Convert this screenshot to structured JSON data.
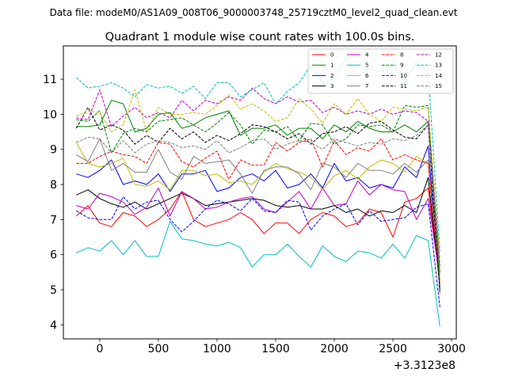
{
  "chart_data": {
    "type": "line",
    "suptitle": "Data file: modeM0/AS1A09_008T06_9000003748_25719cztM0_level2_quad_clean.evt",
    "title": "Quadrant 1 module wise count rates with 100.0s bins.",
    "xlabel": "",
    "ylabel": "",
    "x_offset_label": "+3.3123e8",
    "xlim": [
      -310,
      3040
    ],
    "ylim": [
      3.6,
      11.95
    ],
    "x_ticks": [
      0,
      500,
      1000,
      1500,
      2000,
      2500,
      3000
    ],
    "y_ticks": [
      4,
      5,
      6,
      7,
      8,
      9,
      10,
      11
    ],
    "grid": false,
    "legend_position": "upper-right",
    "legend_columns": 4,
    "x": [
      -200,
      -100,
      0,
      100,
      200,
      300,
      400,
      500,
      600,
      700,
      800,
      900,
      1000,
      1100,
      1200,
      1300,
      1400,
      1500,
      1600,
      1700,
      1800,
      1900,
      2000,
      2100,
      2200,
      2300,
      2400,
      2500,
      2600,
      2700,
      2800,
      2900
    ],
    "series": [
      {
        "name": "0",
        "color": "#ff0000",
        "dash": "solid",
        "values": [
          7.1,
          7.4,
          6.9,
          6.8,
          7.2,
          7.1,
          6.8,
          7.0,
          7.3,
          7.8,
          7.0,
          6.8,
          6.9,
          7.0,
          7.2,
          7.0,
          6.6,
          6.9,
          6.9,
          6.6,
          7.0,
          7.2,
          7.1,
          6.8,
          6.9,
          7.3,
          7.2,
          6.5,
          7.5,
          7.6,
          7.9,
          5.2
        ]
      },
      {
        "name": "1",
        "color": "#008000",
        "dash": "solid",
        "values": [
          9.65,
          9.65,
          9.7,
          10.4,
          10.3,
          9.5,
          9.6,
          10.0,
          10.05,
          9.6,
          9.7,
          9.9,
          10.0,
          10.1,
          9.4,
          9.6,
          9.6,
          9.7,
          9.4,
          9.6,
          9.6,
          9.3,
          9.7,
          9.5,
          9.8,
          9.6,
          9.5,
          9.5,
          9.7,
          9.5,
          9.8,
          5.5
        ]
      },
      {
        "name": "2",
        "color": "#0000ff",
        "dash": "solid",
        "values": [
          8.3,
          8.2,
          8.4,
          8.7,
          8.0,
          8.1,
          8.0,
          8.3,
          7.8,
          8.3,
          8.3,
          8.4,
          7.8,
          7.9,
          8.2,
          8.3,
          8.1,
          8.4,
          7.9,
          8.0,
          8.3,
          7.9,
          8.6,
          8.1,
          8.2,
          7.9,
          8.0,
          7.9,
          8.5,
          8.2,
          9.1,
          5.0
        ]
      },
      {
        "name": "3",
        "color": "#000000",
        "dash": "solid",
        "values": [
          7.7,
          7.85,
          7.6,
          7.45,
          7.35,
          7.5,
          7.3,
          7.45,
          7.6,
          7.75,
          7.6,
          7.4,
          7.45,
          7.5,
          7.55,
          7.6,
          7.55,
          7.4,
          7.35,
          7.4,
          7.3,
          7.3,
          7.4,
          7.2,
          7.3,
          7.1,
          7.25,
          7.2,
          7.4,
          7.2,
          8.2,
          5.1
        ]
      },
      {
        "name": "4",
        "color": "#c000c0",
        "dash": "solid",
        "values": [
          7.4,
          7.3,
          7.75,
          7.65,
          7.5,
          7.15,
          7.35,
          7.9,
          7.1,
          7.8,
          7.6,
          7.3,
          7.35,
          7.5,
          7.6,
          7.65,
          7.3,
          7.2,
          7.5,
          7.8,
          7.3,
          7.9,
          7.4,
          7.45,
          8.1,
          7.7,
          8.0,
          7.85,
          7.8,
          7.0,
          7.6,
          5.3
        ]
      },
      {
        "name": "5",
        "color": "#00bfbf",
        "dash": "solid",
        "values": [
          6.05,
          6.2,
          6.1,
          6.4,
          6.0,
          6.4,
          5.95,
          5.95,
          6.95,
          6.45,
          6.4,
          6.3,
          6.25,
          6.35,
          6.2,
          5.65,
          6.0,
          6.0,
          6.3,
          5.95,
          5.65,
          6.25,
          5.95,
          5.8,
          6.1,
          6.05,
          5.9,
          6.3,
          5.9,
          6.55,
          6.4,
          3.95
        ]
      },
      {
        "name": "6",
        "color": "#bfbf00",
        "dash": "solid",
        "values": [
          9.2,
          8.6,
          8.5,
          8.6,
          8.75,
          8.0,
          7.95,
          8.1,
          7.85,
          8.4,
          8.4,
          8.25,
          8.3,
          8.05,
          8.1,
          8.0,
          8.35,
          8.6,
          8.45,
          8.35,
          8.2,
          7.85,
          8.25,
          8.4,
          8.15,
          8.5,
          8.7,
          8.6,
          8.35,
          8.8,
          8.6,
          5.3
        ]
      },
      {
        "name": "7",
        "color": "#808080",
        "dash": "solid",
        "values": [
          8.85,
          8.65,
          9.3,
          8.4,
          8.6,
          8.35,
          8.35,
          9.0,
          8.35,
          8.15,
          8.8,
          8.6,
          8.65,
          8.7,
          8.3,
          7.75,
          8.4,
          8.5,
          8.5,
          8.3,
          7.85,
          8.6,
          8.5,
          8.2,
          8.6,
          8.4,
          8.4,
          8.3,
          8.6,
          8.35,
          8.7,
          5.1
        ]
      },
      {
        "name": "8",
        "color": "#ff0000",
        "dash": "dashed",
        "values": [
          8.6,
          8.6,
          8.8,
          8.95,
          8.85,
          8.8,
          8.6,
          9.2,
          9.15,
          8.65,
          8.5,
          8.75,
          8.95,
          8.15,
          8.7,
          8.55,
          8.55,
          9.2,
          8.95,
          9.2,
          9.3,
          8.5,
          9.25,
          8.85,
          9.05,
          8.95,
          9.3,
          8.7,
          8.85,
          8.7,
          8.6,
          5.1
        ]
      },
      {
        "name": "9",
        "color": "#008000",
        "dash": "dashed",
        "values": [
          9.85,
          9.8,
          10.1,
          8.9,
          9.45,
          9.6,
          9.5,
          9.8,
          9.85,
          9.9,
          9.7,
          9.5,
          9.75,
          10.05,
          9.7,
          9.15,
          9.55,
          9.5,
          9.65,
          9.25,
          9.75,
          9.7,
          9.15,
          9.3,
          9.7,
          9.65,
          9.7,
          9.5,
          10.25,
          10.2,
          10.25,
          5.0
        ]
      },
      {
        "name": "10",
        "color": "#0000ff",
        "dash": "dashed",
        "values": [
          7.25,
          7.05,
          7.0,
          7.0,
          7.65,
          7.3,
          7.5,
          7.55,
          7.0,
          6.65,
          6.95,
          7.3,
          7.55,
          7.45,
          7.25,
          7.6,
          7.25,
          7.2,
          7.55,
          7.5,
          6.7,
          7.1,
          7.3,
          7.45,
          6.85,
          7.25,
          6.95,
          7.0,
          7.05,
          7.35,
          7.45,
          4.5
        ]
      },
      {
        "name": "11",
        "color": "#000000",
        "dash": "dashed",
        "values": [
          9.6,
          10.2,
          9.55,
          9.7,
          9.55,
          9.15,
          9.4,
          9.2,
          9.6,
          9.3,
          9.5,
          9.2,
          9.4,
          9.25,
          9.45,
          9.7,
          9.65,
          9.5,
          9.3,
          9.45,
          9.15,
          9.45,
          9.5,
          9.65,
          9.45,
          9.75,
          9.8,
          9.55,
          9.35,
          9.3,
          9.7,
          4.9
        ]
      },
      {
        "name": "12",
        "color": "#c000c0",
        "dash": "dashed",
        "values": [
          9.9,
          9.85,
          10.7,
          9.65,
          9.95,
          10.2,
          9.9,
          10.05,
          9.9,
          10.4,
          10.1,
          10.4,
          10.3,
          10.5,
          10.4,
          10.75,
          10.45,
          10.3,
          10.5,
          10.35,
          10.4,
          10.05,
          10.2,
          10.0,
          10.1,
          10.0,
          10.15,
          10.0,
          10.1,
          10.05,
          9.8,
          5.7
        ]
      },
      {
        "name": "13",
        "color": "#00bfbf",
        "dash": "dashed",
        "values": [
          11.05,
          10.75,
          10.8,
          10.9,
          10.75,
          10.5,
          10.85,
          10.75,
          10.8,
          10.6,
          10.8,
          10.45,
          10.9,
          10.9,
          10.5,
          10.7,
          10.9,
          10.3,
          10.65,
          10.9,
          11.4,
          10.9,
          11.0,
          11.6,
          11.1,
          11.3,
          11.2,
          11.4,
          10.9,
          11.5,
          11.2,
          6.1
        ]
      },
      {
        "name": "14",
        "color": "#bfbf00",
        "dash": "dashed",
        "values": [
          9.95,
          10.1,
          10.05,
          9.5,
          9.7,
          10.7,
          9.5,
          10.2,
          10.0,
          10.0,
          10.05,
          10.0,
          10.25,
          10.55,
          10.15,
          10.3,
          10.1,
          9.8,
          9.9,
          10.45,
          10.15,
          9.75,
          10.3,
          10.0,
          10.45,
          10.0,
          9.8,
          10.2,
          10.15,
          10.1,
          10.2,
          5.9
        ]
      },
      {
        "name": "15",
        "color": "#808080",
        "dash": "dashed",
        "values": [
          9.2,
          9.35,
          9.3,
          8.9,
          9.25,
          8.9,
          9.15,
          9.25,
          9.2,
          9.05,
          9.1,
          9.0,
          9.25,
          8.9,
          9.05,
          9.25,
          9.3,
          9.0,
          9.15,
          9.25,
          9.2,
          9.0,
          9.3,
          9.2,
          9.1,
          9.2,
          9.15,
          9.3,
          9.25,
          9.4,
          9.7,
          5.4
        ]
      }
    ]
  }
}
